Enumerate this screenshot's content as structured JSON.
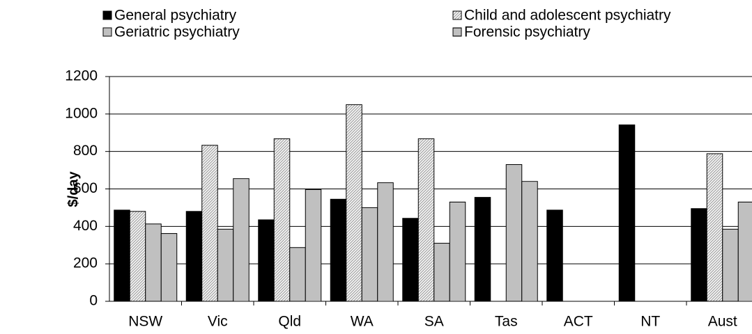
{
  "chart_data": {
    "type": "bar",
    "y_label": "$/day",
    "categories": [
      "NSW",
      "Vic",
      "Qld",
      "WA",
      "SA",
      "Tas",
      "ACT",
      "NT",
      "Aust"
    ],
    "series": [
      {
        "name": "General psychiatry",
        "color": "#000000",
        "pattern": "solid",
        "values": [
          487,
          480,
          435,
          545,
          443,
          555,
          487,
          942,
          495
        ]
      },
      {
        "name": "Child and adolescent psychiatry",
        "color": "#a8a8a8",
        "pattern": "diagonal",
        "values": [
          480,
          833,
          868,
          1050,
          868,
          null,
          null,
          null,
          788
        ]
      },
      {
        "name": "Geriatric psychiatry",
        "color": "#c0c0c0",
        "pattern": "solid",
        "values": [
          413,
          385,
          287,
          500,
          310,
          730,
          null,
          null,
          385
        ]
      },
      {
        "name": "Forensic psychiatry",
        "color": "#808080",
        "pattern": "horizontal",
        "values": [
          362,
          655,
          597,
          633,
          530,
          640,
          null,
          null,
          530
        ]
      }
    ],
    "ylim": [
      0,
      1200
    ],
    "yticks": [
      0,
      200,
      400,
      600,
      800,
      1000,
      1200
    ],
    "grid": true
  }
}
